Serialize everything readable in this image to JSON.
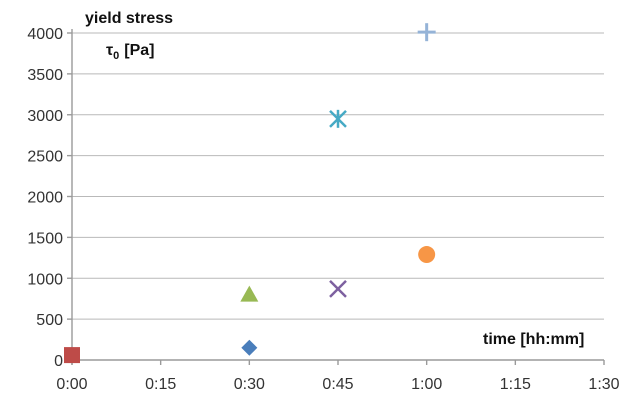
{
  "chart_data": {
    "type": "scatter",
    "ylabel_main": "yield stress",
    "ylabel_symbol": "τ",
    "ylabel_subscript": "0",
    "ylabel_unit": "[Pa]",
    "xlabel": "time [hh:mm]",
    "x_ticks": [
      "0:00",
      "0:15",
      "0:30",
      "0:45",
      "1:00",
      "1:15",
      "1:30"
    ],
    "y_ticks": [
      "0",
      "500",
      "1000",
      "1500",
      "2000",
      "2500",
      "3000",
      "3500",
      "4000"
    ],
    "xlim_minutes": [
      0,
      90
    ],
    "ylim": [
      0,
      4000
    ],
    "grid": "horizontal",
    "points": [
      {
        "x": "0:00",
        "y": 60,
        "marker": "square",
        "color": "#be4b48"
      },
      {
        "x": "0:30",
        "y": 150,
        "marker": "diamond",
        "color": "#4a7ebb"
      },
      {
        "x": "0:30",
        "y": 800,
        "marker": "triangle",
        "color": "#98b954"
      },
      {
        "x": "0:45",
        "y": 870,
        "marker": "x",
        "color": "#7d60a0"
      },
      {
        "x": "0:45",
        "y": 2950,
        "marker": "asterisk",
        "color": "#46aac5"
      },
      {
        "x": "1:00",
        "y": 1290,
        "marker": "circle",
        "color": "#f79646"
      },
      {
        "x": "1:00",
        "y": 4010,
        "marker": "plus",
        "color": "#95b3d7"
      }
    ]
  }
}
